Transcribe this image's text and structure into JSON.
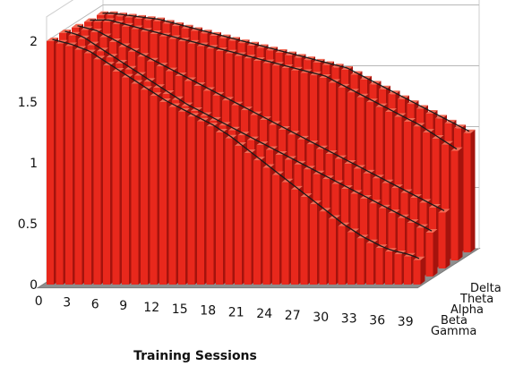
{
  "chart_data": {
    "type": "bar",
    "title": "",
    "xlabel": "Training Sessions",
    "ylabel": "",
    "ylim": [
      0,
      2
    ],
    "y_ticks": [
      "0",
      "0.5",
      "1",
      "1.5",
      "2"
    ],
    "x_tick_labels": [
      "0",
      "3",
      "6",
      "9",
      "12",
      "15",
      "18",
      "21",
      "24",
      "27",
      "30",
      "33",
      "36",
      "39"
    ],
    "x_tick_values": [
      0,
      3,
      6,
      9,
      12,
      15,
      18,
      21,
      24,
      27,
      30,
      33,
      36,
      39
    ],
    "categories": [
      "0",
      "1",
      "2",
      "3",
      "4",
      "5",
      "6",
      "7",
      "8",
      "9",
      "10",
      "11",
      "12",
      "13",
      "14",
      "15",
      "16",
      "17",
      "18",
      "19",
      "20",
      "21",
      "22",
      "23",
      "24",
      "25",
      "26",
      "27",
      "28",
      "29",
      "30",
      "31",
      "32",
      "33",
      "34",
      "35",
      "36",
      "37",
      "38",
      "39"
    ],
    "depth_categories": [
      "Delta",
      "Theta",
      "Alpha",
      "Beta",
      "Gamma"
    ],
    "grid": true,
    "trend_lines": true,
    "series": [
      {
        "name": "Gamma",
        "values": [
          2.0,
          1.98,
          1.96,
          1.93,
          1.9,
          1.85,
          1.8,
          1.75,
          1.7,
          1.65,
          1.6,
          1.55,
          1.5,
          1.46,
          1.42,
          1.38,
          1.34,
          1.3,
          1.25,
          1.2,
          1.14,
          1.08,
          1.02,
          0.96,
          0.9,
          0.84,
          0.78,
          0.72,
          0.66,
          0.6,
          0.54,
          0.48,
          0.43,
          0.38,
          0.34,
          0.3,
          0.27,
          0.25,
          0.23,
          0.2
        ]
      },
      {
        "name": "Beta",
        "values": [
          2.0,
          1.98,
          1.95,
          1.9,
          1.85,
          1.8,
          1.75,
          1.7,
          1.65,
          1.6,
          1.55,
          1.5,
          1.45,
          1.4,
          1.36,
          1.32,
          1.28,
          1.24,
          1.2,
          1.16,
          1.12,
          1.08,
          1.04,
          1.0,
          0.96,
          0.92,
          0.88,
          0.84,
          0.8,
          0.76,
          0.72,
          0.68,
          0.64,
          0.6,
          0.56,
          0.52,
          0.48,
          0.44,
          0.4,
          0.36
        ]
      },
      {
        "name": "Alpha",
        "values": [
          1.98,
          1.96,
          1.94,
          1.9,
          1.86,
          1.82,
          1.78,
          1.74,
          1.7,
          1.66,
          1.62,
          1.58,
          1.54,
          1.5,
          1.46,
          1.42,
          1.38,
          1.34,
          1.3,
          1.26,
          1.22,
          1.18,
          1.14,
          1.1,
          1.06,
          1.02,
          0.98,
          0.94,
          0.9,
          0.86,
          0.82,
          0.78,
          0.74,
          0.7,
          0.66,
          0.62,
          0.58,
          0.54,
          0.5,
          0.46
        ]
      },
      {
        "name": "Theta",
        "values": [
          1.96,
          1.96,
          1.96,
          1.94,
          1.92,
          1.9,
          1.88,
          1.86,
          1.84,
          1.82,
          1.8,
          1.78,
          1.76,
          1.74,
          1.72,
          1.7,
          1.68,
          1.66,
          1.64,
          1.62,
          1.6,
          1.58,
          1.56,
          1.54,
          1.52,
          1.5,
          1.46,
          1.42,
          1.38,
          1.34,
          1.3,
          1.26,
          1.22,
          1.18,
          1.14,
          1.1,
          1.05,
          1.0,
          0.95,
          0.9
        ]
      },
      {
        "name": "Delta",
        "values": [
          1.95,
          1.95,
          1.94,
          1.93,
          1.92,
          1.91,
          1.9,
          1.88,
          1.86,
          1.84,
          1.82,
          1.8,
          1.78,
          1.76,
          1.74,
          1.72,
          1.7,
          1.68,
          1.66,
          1.64,
          1.62,
          1.6,
          1.58,
          1.56,
          1.54,
          1.52,
          1.5,
          1.46,
          1.42,
          1.38,
          1.34,
          1.3,
          1.26,
          1.22,
          1.18,
          1.14,
          1.1,
          1.06,
          1.02,
          0.98
        ]
      }
    ],
    "colors": {
      "bar_front": "#e8281c",
      "bar_side": "#a5130d",
      "bar_top": "#f26a55",
      "floor": "#8e8e8e",
      "grid": "#b8b8b8",
      "trend_line": "#1a1a1a"
    }
  }
}
